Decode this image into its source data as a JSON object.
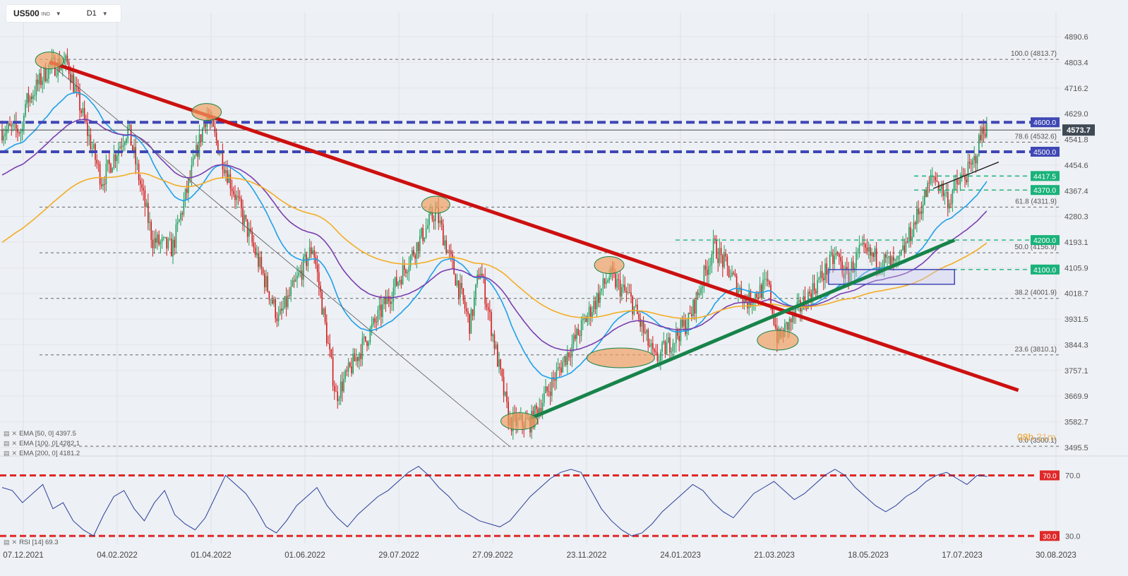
{
  "toolbar": {
    "symbol": "US500",
    "symbol_type": "IND",
    "timeframe": "D1"
  },
  "timer": {
    "hours": "08h",
    "minutes": "31m"
  },
  "legend": [
    {
      "label": "EMA [50, 0] 4397.5",
      "color": "#1ea0ea"
    },
    {
      "label": "EMA [100, 0] 4282.1",
      "color": "#7a3fb0"
    },
    {
      "label": "EMA [200, 0] 4181.2",
      "color": "#f3ad24"
    }
  ],
  "rsi_legend": "RSI [14] 69.3",
  "icons": [
    "settings-icon",
    "close-icon",
    "caret-down-icon"
  ],
  "colors": {
    "background": "#eef1f5",
    "up": "#1f9e5c",
    "down": "#d11b1b",
    "trend_down": "#cc1010",
    "trend_up": "#17834a",
    "resistance": "#3f47b5",
    "support": "#19b27a",
    "rsi": "#2c3f9a",
    "rsi_bands": "#e02828",
    "highlight": "#f0a062",
    "ema50": "#1ea0ea",
    "ema100": "#7a3fb0",
    "ema200": "#f3ad24"
  },
  "chart_data": [
    {
      "type": "candlestick",
      "title": "US500 D1",
      "y_ticks": [
        "4890.6",
        "4803.4",
        "4716.2",
        "4629.0",
        "4541.8",
        "4454.6",
        "4367.4",
        "4280.3",
        "4193.1",
        "4105.9",
        "4018.7",
        "3931.5",
        "3844.3",
        "3757.1",
        "3669.9",
        "3582.7",
        "3495.5"
      ],
      "x_ticks": [
        "07.12.2021",
        "04.02.2022",
        "01.04.2022",
        "01.06.2022",
        "29.07.2022",
        "27.09.2022",
        "23.11.2022",
        "24.01.2023",
        "21.03.2023",
        "18.05.2023",
        "17.07.2023",
        "30.08.2023"
      ],
      "ylim": [
        3495.5,
        4890.6
      ],
      "last_price": "4573.7",
      "path": [
        [
          "07.12.2021",
          4650
        ],
        [
          "23.12.2021",
          4790
        ],
        [
          "03.01.2022",
          4800
        ],
        [
          "24.01.2022",
          4400
        ],
        [
          "09.02.2022",
          4580
        ],
        [
          "24.02.2022",
          4200
        ],
        [
          "08.03.2022",
          4170
        ],
        [
          "29.03.2022",
          4630
        ],
        [
          "12.05.2022",
          3930
        ],
        [
          "02.06.2022",
          4180
        ],
        [
          "16.06.2022",
          3670
        ],
        [
          "08.07.2022",
          3900
        ],
        [
          "16.08.2022",
          4300
        ],
        [
          "06.09.2022",
          3910
        ],
        [
          "12.09.2022",
          4110
        ],
        [
          "30.09.2022",
          3580
        ],
        [
          "13.10.2022",
          3580
        ],
        [
          "30.11.2022",
          4080
        ],
        [
          "13.12.2022",
          4000
        ],
        [
          "28.12.2022",
          3790
        ],
        [
          "18.01.2023",
          3930
        ],
        [
          "02.02.2023",
          4180
        ],
        [
          "22.02.2023",
          3990
        ],
        [
          "07.03.2023",
          4050
        ],
        [
          "13.03.2023",
          3860
        ],
        [
          "18.04.2023",
          4150
        ],
        [
          "24.04.2023",
          4070
        ],
        [
          "02.05.2023",
          4160
        ],
        [
          "25.05.2023",
          4110
        ],
        [
          "16.06.2023",
          4420
        ],
        [
          "26.06.2023",
          4330
        ],
        [
          "28.06.2023",
          4370
        ],
        [
          "10.07.2023",
          4450
        ],
        [
          "17.07.2023",
          4590
        ],
        [
          "19.07.2023",
          4573.7
        ]
      ],
      "ema": [
        {
          "name": "EMA [50, 0]",
          "value": 4397.5
        },
        {
          "name": "EMA [100, 0]",
          "value": 4282.1
        },
        {
          "name": "EMA [200, 0]",
          "value": 4181.2
        }
      ],
      "fibonacci": [
        {
          "label": "100.0 (4813.7)",
          "value": 4813.7
        },
        {
          "label": "78.6 (4532.6)",
          "value": 4532.6
        },
        {
          "label": "61.8 (4311.9)",
          "value": 4311.9
        },
        {
          "label": "50.0 (4156.9)",
          "value": 4156.9
        },
        {
          "label": "38.2 (4001.9)",
          "value": 4001.9
        },
        {
          "label": "23.6 (3810.1)",
          "value": 3810.1
        },
        {
          "label": "0.0 (3500.1)",
          "value": 3500.1
        }
      ],
      "levels": [
        {
          "label": "4600.0",
          "value": 4600.0,
          "style": "resistance"
        },
        {
          "label": "4500.0",
          "value": 4500.0,
          "style": "resistance"
        },
        {
          "label": "4417.5",
          "value": 4417.5,
          "style": "support"
        },
        {
          "label": "4370.0",
          "value": 4370.0,
          "style": "support"
        },
        {
          "label": "4200.0",
          "value": 4200.0,
          "style": "support"
        },
        {
          "label": "4100.0",
          "value": 4100.0,
          "style": "support"
        }
      ]
    },
    {
      "type": "line",
      "title": "RSI [14] 69.3",
      "levels": [
        {
          "label": "70.0",
          "value": 70.0
        },
        {
          "label": "30.0",
          "value": 30.0
        }
      ],
      "ylim": [
        25,
        80
      ],
      "values": [
        62,
        60,
        52,
        58,
        64,
        48,
        52,
        40,
        34,
        30,
        44,
        56,
        60,
        48,
        40,
        52,
        60,
        44,
        38,
        34,
        42,
        56,
        70,
        64,
        58,
        48,
        36,
        32,
        40,
        50,
        56,
        62,
        50,
        42,
        36,
        44,
        50,
        56,
        60,
        66,
        72,
        76,
        70,
        62,
        56,
        48,
        44,
        40,
        38,
        36,
        40,
        48,
        56,
        62,
        68,
        72,
        74,
        72,
        60,
        48,
        40,
        34,
        30,
        32,
        38,
        46,
        52,
        58,
        64,
        60,
        52,
        46,
        42,
        50,
        58,
        62,
        66,
        60,
        54,
        58,
        64,
        70,
        74,
        70,
        62,
        56,
        50,
        46,
        50,
        56,
        60,
        66,
        70,
        72,
        68,
        64,
        70,
        69.3
      ]
    }
  ]
}
